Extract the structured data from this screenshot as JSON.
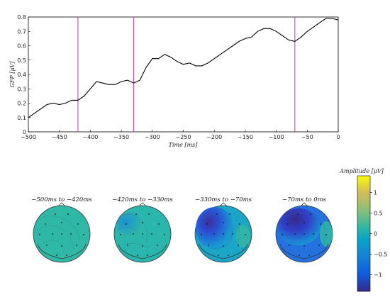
{
  "chart_data": [
    {
      "type": "line",
      "title": "",
      "xlabel": "Time [ms]",
      "ylabel": "GFP [μV]",
      "xlim": [
        -500,
        0
      ],
      "ylim": [
        0,
        0.8
      ],
      "x_ticks": [
        "−500",
        "−450",
        "−400",
        "−350",
        "−300",
        "−250",
        "−200",
        "−150",
        "−100",
        "−50",
        "0"
      ],
      "y_ticks": [
        "0",
        "0.1",
        "0.2",
        "0.3",
        "0.4",
        "0.5",
        "0.6",
        "0.7",
        "0.8"
      ],
      "x": [
        -500,
        -490,
        -480,
        -470,
        -460,
        -450,
        -440,
        -430,
        -420,
        -410,
        -400,
        -390,
        -380,
        -370,
        -360,
        -350,
        -340,
        -330,
        -320,
        -310,
        -300,
        -290,
        -280,
        -270,
        -260,
        -250,
        -240,
        -230,
        -220,
        -210,
        -200,
        -190,
        -180,
        -170,
        -160,
        -150,
        -140,
        -130,
        -120,
        -110,
        -100,
        -90,
        -80,
        -70,
        -60,
        -50,
        -40,
        -30,
        -20,
        -10,
        0
      ],
      "y": [
        0.1,
        0.13,
        0.16,
        0.19,
        0.2,
        0.19,
        0.2,
        0.22,
        0.22,
        0.25,
        0.3,
        0.35,
        0.34,
        0.33,
        0.33,
        0.35,
        0.36,
        0.34,
        0.36,
        0.45,
        0.51,
        0.51,
        0.54,
        0.52,
        0.49,
        0.47,
        0.48,
        0.46,
        0.46,
        0.48,
        0.51,
        0.54,
        0.57,
        0.6,
        0.63,
        0.65,
        0.66,
        0.7,
        0.72,
        0.72,
        0.7,
        0.67,
        0.64,
        0.63,
        0.66,
        0.7,
        0.73,
        0.76,
        0.79,
        0.79,
        0.78
      ],
      "vertical_markers": [
        -420,
        -330,
        -70
      ],
      "line_color": "#000000",
      "marker_color": "#c0399a"
    },
    {
      "type": "heatmap",
      "topomaps": [
        {
          "title": "−500ms to −420ms",
          "blob_value": 0.0
        },
        {
          "title": "−420ms to −330ms",
          "blob_value": -0.35
        },
        {
          "title": "−330ms to −70ms",
          "blob_value": -1.2
        },
        {
          "title": "−70ms to 0ms",
          "blob_value": -1.4
        }
      ],
      "colorbar": {
        "label": "Amplitude [μV]",
        "range": [
          -1.4,
          1.4
        ],
        "ticks": [
          "1",
          "0.5",
          "0",
          "−0.5",
          "−1"
        ],
        "colormap": "parula"
      }
    }
  ]
}
